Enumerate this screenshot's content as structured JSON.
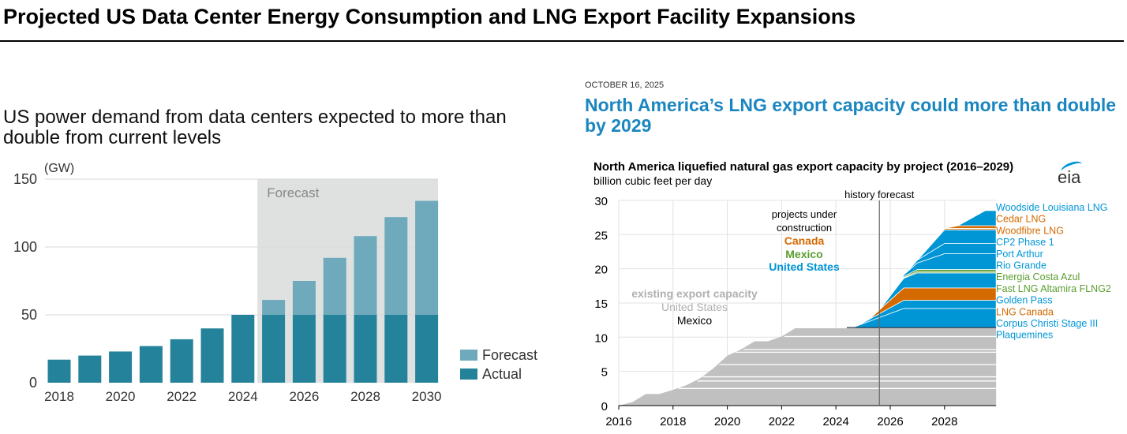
{
  "title": "Projected US Data Center Energy Consumption and LNG Export Facility Expansions",
  "left_headline": "US power demand from data centers expected to more than double from current levels",
  "right_date": "OCTOBER 16, 2025",
  "right_headline": "North America’s LNG export capacity could more than double by 2029",
  "logo_text": "eia",
  "colors": {
    "actual": "#24839a",
    "forecast": "#6eaabb",
    "forecast_bg": "#dfe1e1",
    "us": "#0096d6",
    "canada": "#d46a00",
    "mexico": "#5a9e2f",
    "existing": "#c0c0c0"
  },
  "chart_data": [
    {
      "type": "bar",
      "title": "US power demand from data centers expected to more than double from current levels",
      "ylabel": "(GW)",
      "ylim": [
        0,
        150
      ],
      "yticks": [
        "0",
        "50",
        "100",
        "150"
      ],
      "xtick_labels": [
        "2018",
        "2020",
        "2022",
        "2024",
        "2026",
        "2028",
        "2030"
      ],
      "shaded_region_label": "Forecast",
      "categories": [
        "2018",
        "2019",
        "2020",
        "2021",
        "2022",
        "2023",
        "2024",
        "2025",
        "2026",
        "2027",
        "2028",
        "2029",
        "2030"
      ],
      "series": [
        {
          "name": "Actual",
          "values": [
            17,
            20,
            23,
            27,
            32,
            40,
            50,
            50,
            50,
            50,
            50,
            50,
            50
          ]
        },
        {
          "name": "Forecast",
          "values": [
            0,
            0,
            0,
            0,
            0,
            0,
            0,
            11,
            25,
            42,
            58,
            72,
            84
          ]
        }
      ],
      "totals": [
        17,
        20,
        23,
        27,
        32,
        40,
        50,
        61,
        75,
        92,
        108,
        122,
        134
      ],
      "legend": [
        "Forecast",
        "Actual"
      ],
      "legend_position": "bottom-right",
      "grid": true
    },
    {
      "type": "area",
      "title": "North America liquefied natural gas export capacity by project (2016–2029)",
      "ylabel": "billion cubic feet per day",
      "ylim": [
        0,
        30
      ],
      "xlim": [
        2016,
        2029.9
      ],
      "yticks": [
        "0",
        "5",
        "10",
        "15",
        "20",
        "25",
        "30"
      ],
      "xtick_labels": [
        "2016",
        "2018",
        "2020",
        "2022",
        "2024",
        "2026",
        "2028"
      ],
      "divider": {
        "year": 2025.6,
        "label": "history forecast"
      },
      "annotations": {
        "under_construction": [
          "projects under",
          "construction"
        ],
        "canada": "Canada",
        "mexico": "Mexico",
        "united_states": "United States",
        "existing": "existing export capacity",
        "existing_us": "United States",
        "existing_mexico": "Mexico"
      },
      "existing_capacity": {
        "x": [
          2016,
          2016.5,
          2017,
          2017.5,
          2018,
          2018.5,
          2019,
          2019.5,
          2020,
          2020.5,
          2021,
          2021.5,
          2022,
          2022.5,
          2029.9
        ],
        "y": [
          0,
          0.5,
          1.7,
          1.7,
          2.3,
          3.0,
          4.0,
          5.5,
          7.3,
          8.2,
          9.4,
          9.4,
          10.1,
          11.3,
          11.3
        ],
        "internal_levels": [
          2.5,
          3.6,
          4.2,
          6.0,
          7.8,
          8.2,
          10.1
        ]
      },
      "projects": [
        {
          "name": "Plaquemines",
          "country": "us",
          "start": 2024.6,
          "end": 2026.5,
          "capacity": 2.8
        },
        {
          "name": "Corpus Christi Stage III",
          "country": "us",
          "start": 2024.8,
          "end": 2026.5,
          "capacity": 1.2
        },
        {
          "name": "LNG Canada",
          "country": "canada",
          "start": 2025.2,
          "end": 2026.5,
          "capacity": 1.8
        },
        {
          "name": "Golden Pass",
          "country": "us",
          "start": 2025.6,
          "end": 2027.0,
          "capacity": 2.2
        },
        {
          "name": "Fast LNG Altamira FLNG2",
          "country": "mexico",
          "start": 2026.0,
          "end": 2027.0,
          "capacity": 0.2
        },
        {
          "name": "Energia Costa Azul",
          "country": "mexico",
          "start": 2026.0,
          "end": 2027.0,
          "capacity": 0.3
        },
        {
          "name": "Rio Grande",
          "country": "us",
          "start": 2026.3,
          "end": 2028.0,
          "capacity": 2.3
        },
        {
          "name": "Port Arthur",
          "country": "us",
          "start": 2026.6,
          "end": 2028.0,
          "capacity": 1.5
        },
        {
          "name": "CP2 Phase 1",
          "country": "us",
          "start": 2027.0,
          "end": 2028.0,
          "capacity": 2.0
        },
        {
          "name": "Woodfibre LNG",
          "country": "canada",
          "start": 2027.5,
          "end": 2028.0,
          "capacity": 0.2
        },
        {
          "name": "Cedar LNG",
          "country": "canada",
          "start": 2028.0,
          "end": 2028.5,
          "capacity": 0.4
        },
        {
          "name": "Woodside Louisiana LNG",
          "country": "us",
          "start": 2028.5,
          "end": 2029.5,
          "capacity": 2.2
        }
      ],
      "legend_position": "right"
    }
  ]
}
